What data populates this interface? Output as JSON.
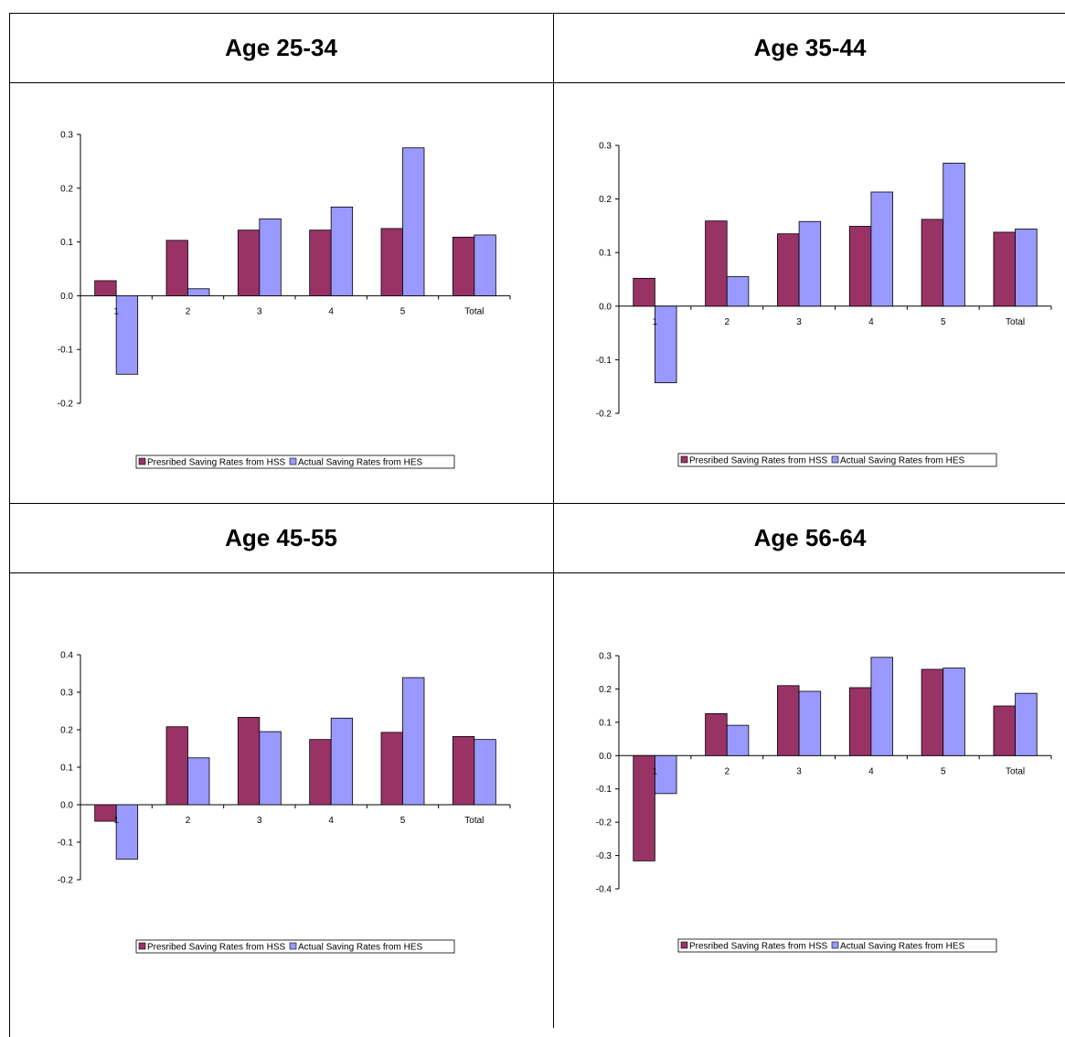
{
  "chart_data": [
    {
      "type": "bar",
      "title": "Age 25-34",
      "categories": [
        "1",
        "2",
        "3",
        "4",
        "5",
        "Total"
      ],
      "series": [
        {
          "name": "Presribed Saving Rates from HSS",
          "values": [
            0.028,
            0.103,
            0.122,
            0.122,
            0.125,
            0.109
          ],
          "color": "#993366"
        },
        {
          "name": "Actual Saving Rates from HES",
          "values": [
            -0.146,
            0.013,
            0.143,
            0.165,
            0.275,
            0.113
          ],
          "color": "#9999FF"
        }
      ],
      "ylim": [
        -0.2,
        0.3
      ],
      "yticks": [
        "-0.2",
        "-0.1",
        "0.0",
        "0.1",
        "0.2",
        "0.3"
      ],
      "legend": "bottom"
    },
    {
      "type": "bar",
      "title": "Age 35-44",
      "categories": [
        "1",
        "2",
        "3",
        "4",
        "5",
        "Total"
      ],
      "series": [
        {
          "name": "Presribed Saving Rates from HSS",
          "values": [
            0.052,
            0.159,
            0.135,
            0.149,
            0.162,
            0.138
          ],
          "color": "#993366"
        },
        {
          "name": "Actual Saving Rates from HES",
          "values": [
            -0.143,
            0.055,
            0.158,
            0.213,
            0.267,
            0.144
          ],
          "color": "#9999FF"
        }
      ],
      "ylim": [
        -0.2,
        0.3
      ],
      "yticks": [
        "-0.2",
        "-0.1",
        "0.0",
        "0.1",
        "0.2",
        "0.3"
      ],
      "legend": "bottom"
    },
    {
      "type": "bar",
      "title": "Age 45-55",
      "categories": [
        "1",
        "2",
        "3",
        "4",
        "5",
        "Total"
      ],
      "series": [
        {
          "name": "Presribed Saving Rates from HSS",
          "values": [
            -0.044,
            0.208,
            0.233,
            0.174,
            0.193,
            0.182
          ],
          "color": "#993366"
        },
        {
          "name": "Actual Saving Rates from HES",
          "values": [
            -0.145,
            0.125,
            0.195,
            0.231,
            0.339,
            0.174
          ],
          "color": "#9999FF"
        }
      ],
      "ylim": [
        -0.2,
        0.4
      ],
      "yticks": [
        "-0.2",
        "-0.1",
        "0.0",
        "0.1",
        "0.2",
        "0.3",
        "0.4"
      ],
      "legend": "bottom"
    },
    {
      "type": "bar",
      "title": "Age 56-64",
      "categories": [
        "1",
        "2",
        "3",
        "4",
        "5",
        "Total"
      ],
      "series": [
        {
          "name": "Presribed Saving Rates from HSS",
          "values": [
            -0.316,
            0.126,
            0.21,
            0.204,
            0.259,
            0.149
          ],
          "color": "#993366"
        },
        {
          "name": "Actual Saving Rates from HES",
          "values": [
            -0.114,
            0.091,
            0.193,
            0.295,
            0.263,
            0.187
          ],
          "color": "#9999FF"
        }
      ],
      "ylim": [
        -0.4,
        0.3
      ],
      "yticks": [
        "-0.4",
        "-0.3",
        "-0.2",
        "-0.1",
        "0.0",
        "0.1",
        "0.2",
        "0.3"
      ],
      "legend": "bottom"
    }
  ]
}
